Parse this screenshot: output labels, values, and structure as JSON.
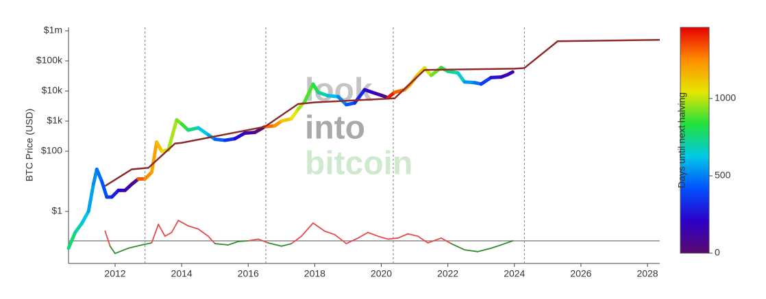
{
  "chart_data": {
    "type": "log-line",
    "y_label": "BTC Price (USD)",
    "colorbar_title": "Days until next halving",
    "watermark": [
      "look",
      "into",
      "bitcoin"
    ],
    "xlim": [
      2010.6,
      2028.37
    ],
    "xticks": [
      2012,
      2014,
      2016,
      2018,
      2020,
      2022,
      2024,
      2026,
      2028
    ],
    "ylim": [
      0.0187,
      1300000
    ],
    "yticks": [
      {
        "value": 1,
        "label": "$1"
      },
      {
        "value": 100,
        "label": "$100"
      },
      {
        "value": 1000,
        "label": "$1k"
      },
      {
        "value": 10000,
        "label": "$10k"
      },
      {
        "value": 100000,
        "label": "$100k"
      },
      {
        "value": 1000000,
        "label": "$1m"
      }
    ],
    "log_y": true,
    "halvings": [
      2012.9,
      2016.53,
      2020.36,
      2024.3
    ],
    "clim": [
      0,
      1460
    ],
    "cticks": [
      0,
      500,
      1000
    ],
    "colorscale": [
      "#5a0a6e",
      "#2d00c8",
      "#0050ff",
      "#00c8e6",
      "#22e03c",
      "#e6e600",
      "#ff8c00",
      "#e60000"
    ],
    "price": {
      "x": [
        2010.6,
        2010.8,
        2011.0,
        2011.2,
        2011.35,
        2011.45,
        2011.6,
        2011.75,
        2011.9,
        2012.1,
        2012.3,
        2012.5,
        2012.7,
        2012.9,
        2013.1,
        2013.25,
        2013.4,
        2013.6,
        2013.85,
        2014.0,
        2014.2,
        2014.5,
        2014.8,
        2015.0,
        2015.3,
        2015.6,
        2015.9,
        2016.2,
        2016.5,
        2016.8,
        2017.0,
        2017.3,
        2017.5,
        2017.7,
        2017.95,
        2018.1,
        2018.4,
        2018.7,
        2018.95,
        2019.2,
        2019.5,
        2019.8,
        2020.0,
        2020.2,
        2020.4,
        2020.7,
        2020.9,
        2021.1,
        2021.3,
        2021.5,
        2021.8,
        2022.0,
        2022.3,
        2022.5,
        2022.8,
        2023.0,
        2023.3,
        2023.6,
        2023.8,
        2023.95
      ],
      "values": [
        0.06,
        0.2,
        0.4,
        1,
        8,
        25,
        10,
        3,
        3,
        5,
        5,
        8,
        12,
        12,
        20,
        200,
        100,
        110,
        1100,
        800,
        500,
        600,
        350,
        250,
        230,
        260,
        400,
        420,
        650,
        700,
        1000,
        1200,
        2500,
        4500,
        17000,
        9000,
        7000,
        6500,
        3500,
        4000,
        11000,
        8500,
        7200,
        6000,
        9000,
        11000,
        18000,
        35000,
        58000,
        33000,
        60000,
        45000,
        40000,
        20000,
        19000,
        17000,
        28000,
        29000,
        35000,
        43000
      ],
      "days": [
        840,
        767,
        694,
        621,
        566,
        529,
        475,
        420,
        365,
        292,
        219,
        146,
        73,
        1325,
        1252,
        1197,
        1142,
        1069,
        978,
        923,
        850,
        741,
        631,
        558,
        449,
        339,
        230,
        120,
        11,
        1299,
        1226,
        1117,
        1044,
        971,
        880,
        825,
        715,
        606,
        515,
        423,
        314,
        204,
        131,
        58,
        1424,
        1314,
        1241,
        1168,
        1095,
        1022,
        912,
        840,
        730,
        657,
        548,
        475,
        365,
        256,
        183,
        128
      ]
    },
    "model": {
      "color": "#8b2a2a",
      "x": [
        2011.7,
        2012.5,
        2013.0,
        2013.8,
        2014.0,
        2016.5,
        2017.5,
        2018.0,
        2020.4,
        2021.3,
        2024.0,
        2024.3,
        2025.3,
        2028.37
      ],
      "values": [
        7,
        25,
        28,
        180,
        190,
        650,
        3700,
        4200,
        5700,
        50000,
        55000,
        58000,
        450000,
        500000
      ]
    },
    "oscillator": {
      "baseline": 0.105,
      "above_color": "#e8474a",
      "below_color": "#2e8b2e",
      "baseline_color": "#888888",
      "x": [
        2011.7,
        2011.85,
        2012.0,
        2012.4,
        2012.8,
        2013.1,
        2013.3,
        2013.5,
        2013.7,
        2013.9,
        2014.2,
        2014.5,
        2014.8,
        2015.0,
        2015.4,
        2015.7,
        2016.0,
        2016.3,
        2016.6,
        2017.0,
        2017.3,
        2017.6,
        2017.95,
        2018.3,
        2018.6,
        2018.95,
        2019.3,
        2019.6,
        2019.9,
        2020.2,
        2020.5,
        2020.8,
        2021.1,
        2021.4,
        2021.8,
        2022.1,
        2022.5,
        2022.9,
        2023.3,
        2023.6,
        2023.95
      ],
      "values": [
        0.22,
        0.07,
        0.04,
        0.06,
        0.077,
        0.09,
        0.37,
        0.15,
        0.2,
        0.5,
        0.33,
        0.26,
        0.15,
        0.085,
        0.077,
        0.1,
        0.105,
        0.12,
        0.09,
        0.07,
        0.085,
        0.15,
        0.41,
        0.22,
        0.17,
        0.085,
        0.13,
        0.2,
        0.15,
        0.12,
        0.13,
        0.18,
        0.15,
        0.09,
        0.13,
        0.085,
        0.053,
        0.046,
        0.06,
        0.077,
        0.105
      ]
    }
  }
}
